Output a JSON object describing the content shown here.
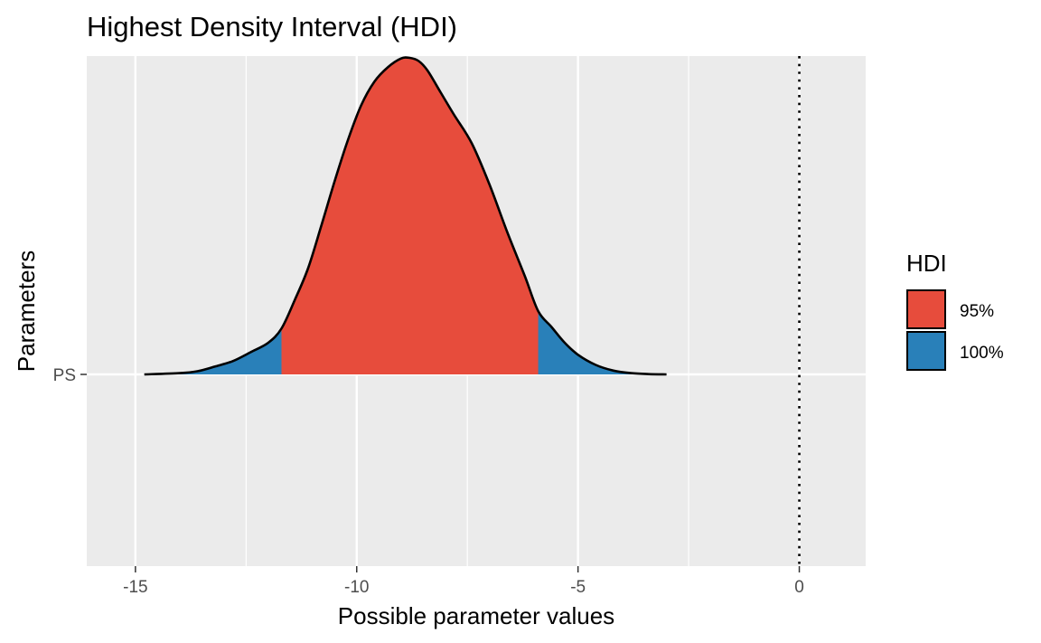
{
  "chart_data": {
    "type": "area",
    "title": "Highest Density Interval (HDI)",
    "xlabel": "Possible parameter values",
    "ylabel": "Parameters",
    "xlim": [
      -16.1,
      1.5
    ],
    "x_ticks": [
      -15,
      -10,
      -5,
      0
    ],
    "x_tick_labels": [
      "-15",
      "-10",
      "-5",
      "0"
    ],
    "categories": [
      "PS"
    ],
    "grid": true,
    "reference_line": {
      "x": 0,
      "style": "dotted"
    },
    "hdi_bounds": {
      "95%": [
        -11.7,
        -5.9
      ],
      "100%": [
        -14.8,
        -3.0
      ]
    },
    "density": {
      "x": [
        -14.8,
        -14.0,
        -13.6,
        -13.2,
        -12.8,
        -12.4,
        -12.0,
        -11.7,
        -11.4,
        -11.1,
        -10.8,
        -10.5,
        -10.2,
        -9.9,
        -9.6,
        -9.3,
        -9.0,
        -8.8,
        -8.6,
        -8.4,
        -8.1,
        -7.8,
        -7.4,
        -7.0,
        -6.6,
        -6.2,
        -5.9,
        -5.6,
        -5.3,
        -5.0,
        -4.6,
        -4.2,
        -3.8,
        -3.4,
        -3.0
      ],
      "y": [
        0.0,
        0.004,
        0.01,
        0.025,
        0.042,
        0.07,
        0.1,
        0.145,
        0.235,
        0.335,
        0.47,
        0.61,
        0.74,
        0.85,
        0.925,
        0.97,
        0.998,
        1.0,
        0.99,
        0.96,
        0.89,
        0.82,
        0.73,
        0.6,
        0.45,
        0.31,
        0.2,
        0.15,
        0.1,
        0.062,
        0.03,
        0.012,
        0.004,
        0.001,
        0.0
      ]
    },
    "legend": {
      "title": "HDI",
      "position": "right",
      "items": [
        {
          "label": "95%",
          "color": "#E74C3C"
        },
        {
          "label": "100%",
          "color": "#2980B9"
        }
      ]
    },
    "colors": {
      "panel": "#EBEBEB",
      "grid": "#FFFFFF",
      "outline": "#000000"
    }
  }
}
